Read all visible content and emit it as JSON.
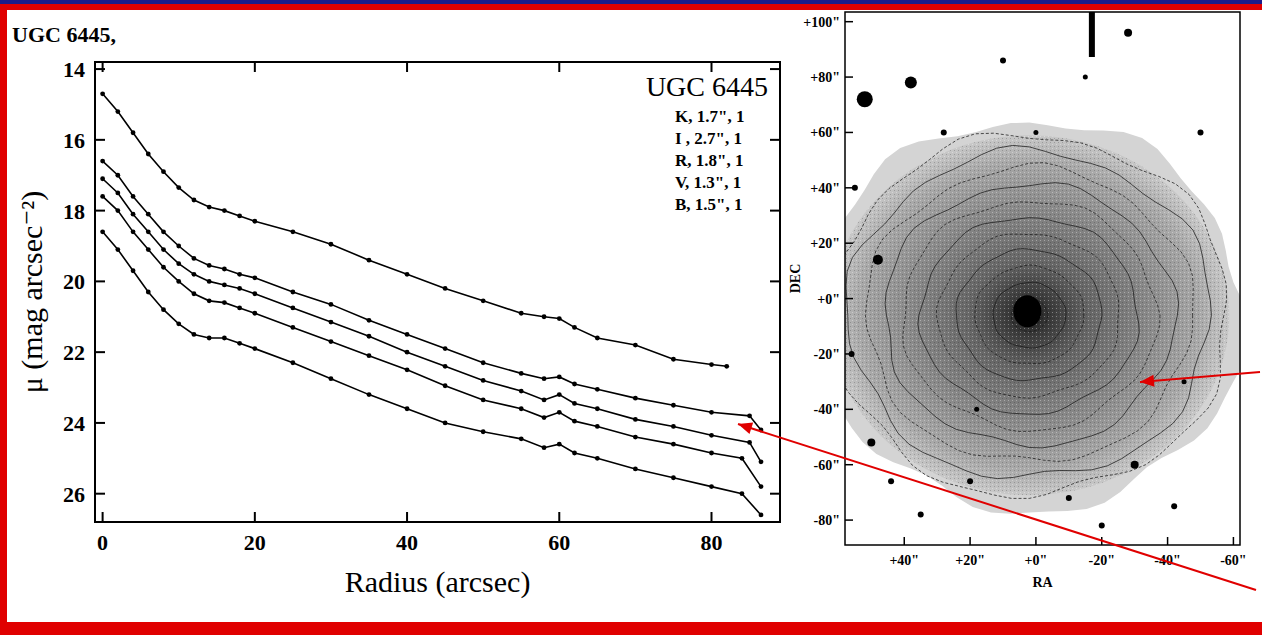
{
  "chart_data": {
    "type": "line",
    "title": "UGC 6445,",
    "legend_title": "UGC 6445",
    "xlabel": "Radius (arcsec)",
    "ylabel": "μ (mag arcsec⁻²)",
    "xlim": [
      -1,
      89
    ],
    "ylim": [
      26.8,
      13.8
    ],
    "xticks": [
      0,
      20,
      40,
      60,
      80
    ],
    "yticks": [
      14,
      16,
      18,
      20,
      22,
      24,
      26
    ],
    "legend": "top-right",
    "marker": "circle",
    "line_style": "solid",
    "series": [
      {
        "name": "K, 1.7\", 1",
        "color": "#000000",
        "x": [
          0,
          2,
          4,
          6,
          8,
          10,
          12,
          14,
          16,
          18,
          20,
          25,
          30,
          35,
          40,
          45,
          50,
          55,
          58,
          60,
          62,
          65,
          70,
          75,
          80,
          82
        ],
        "values": [
          14.7,
          15.2,
          15.8,
          16.4,
          16.9,
          17.35,
          17.7,
          17.9,
          18.0,
          18.15,
          18.3,
          18.6,
          18.95,
          19.4,
          19.8,
          20.2,
          20.55,
          20.9,
          21.0,
          21.05,
          21.3,
          21.6,
          21.8,
          22.2,
          22.35,
          22.4
        ]
      },
      {
        "name": "I , 2.7\", 1",
        "color": "#000000",
        "x": [
          0,
          2,
          4,
          6,
          8,
          10,
          12,
          14,
          16,
          18,
          20,
          25,
          30,
          35,
          40,
          45,
          50,
          55,
          58,
          60,
          62,
          65,
          70,
          75,
          80,
          85,
          86.5
        ],
        "values": [
          16.6,
          17.0,
          17.6,
          18.1,
          18.6,
          19.0,
          19.35,
          19.55,
          19.65,
          19.8,
          19.9,
          20.3,
          20.65,
          21.1,
          21.5,
          21.9,
          22.3,
          22.6,
          22.75,
          22.7,
          22.9,
          23.05,
          23.3,
          23.5,
          23.7,
          23.8,
          24.2
        ]
      },
      {
        "name": "R, 1.8\", 1",
        "color": "#000000",
        "x": [
          0,
          2,
          4,
          6,
          8,
          10,
          12,
          14,
          16,
          18,
          20,
          25,
          30,
          35,
          40,
          45,
          50,
          55,
          58,
          60,
          62,
          65,
          70,
          75,
          80,
          85,
          86.5
        ],
        "values": [
          17.1,
          17.5,
          18.1,
          18.6,
          19.1,
          19.5,
          19.8,
          20.0,
          20.1,
          20.2,
          20.35,
          20.75,
          21.15,
          21.55,
          22.0,
          22.4,
          22.8,
          23.1,
          23.35,
          23.2,
          23.45,
          23.6,
          23.9,
          24.1,
          24.35,
          24.55,
          25.1
        ]
      },
      {
        "name": "V, 1.3\", 1",
        "color": "#000000",
        "x": [
          0,
          2,
          4,
          6,
          8,
          10,
          12,
          14,
          16,
          18,
          20,
          25,
          30,
          35,
          40,
          45,
          50,
          55,
          58,
          60,
          62,
          65,
          70,
          75,
          80,
          84,
          86.5
        ],
        "values": [
          17.6,
          18.0,
          18.6,
          19.1,
          19.6,
          20.0,
          20.35,
          20.55,
          20.6,
          20.75,
          20.9,
          21.3,
          21.7,
          22.1,
          22.5,
          22.95,
          23.35,
          23.6,
          23.85,
          23.7,
          23.95,
          24.1,
          24.4,
          24.6,
          24.85,
          25.0,
          25.8
        ]
      },
      {
        "name": "B, 1.5\", 1",
        "color": "#000000",
        "x": [
          0,
          2,
          4,
          6,
          8,
          10,
          12,
          14,
          16,
          18,
          20,
          25,
          30,
          35,
          40,
          45,
          50,
          55,
          58,
          60,
          62,
          65,
          70,
          75,
          80,
          84,
          86.5
        ],
        "values": [
          18.6,
          19.1,
          19.7,
          20.3,
          20.8,
          21.2,
          21.5,
          21.6,
          21.6,
          21.75,
          21.9,
          22.3,
          22.75,
          23.2,
          23.6,
          24.0,
          24.25,
          24.45,
          24.7,
          24.6,
          24.85,
          25.0,
          25.3,
          25.55,
          25.8,
          26.0,
          26.6
        ]
      }
    ]
  },
  "image_panel": {
    "xlabel": "RA",
    "ylabel": "DEC",
    "xlim": [
      58,
      -62
    ],
    "ylim": [
      -89,
      103.5
    ],
    "xticks": [
      {
        "value": 40,
        "label": "+40\""
      },
      {
        "value": 20,
        "label": "+20\""
      },
      {
        "value": 0,
        "label": "+0\""
      },
      {
        "value": -20,
        "label": "-20\""
      },
      {
        "value": -40,
        "label": "-40\""
      },
      {
        "value": -60,
        "label": "-60\""
      }
    ],
    "yticks": [
      {
        "value": 100,
        "label": "+100\""
      },
      {
        "value": 80,
        "label": "+80\""
      },
      {
        "value": 60,
        "label": "+60\""
      },
      {
        "value": 40,
        "label": "+40\""
      },
      {
        "value": 20,
        "label": "+20\""
      },
      {
        "value": 0,
        "label": "+0\""
      },
      {
        "value": -20,
        "label": "-20\""
      },
      {
        "value": -40,
        "label": "-40\""
      },
      {
        "value": -60,
        "label": "-60\""
      },
      {
        "value": -80,
        "label": "-80\""
      }
    ]
  }
}
